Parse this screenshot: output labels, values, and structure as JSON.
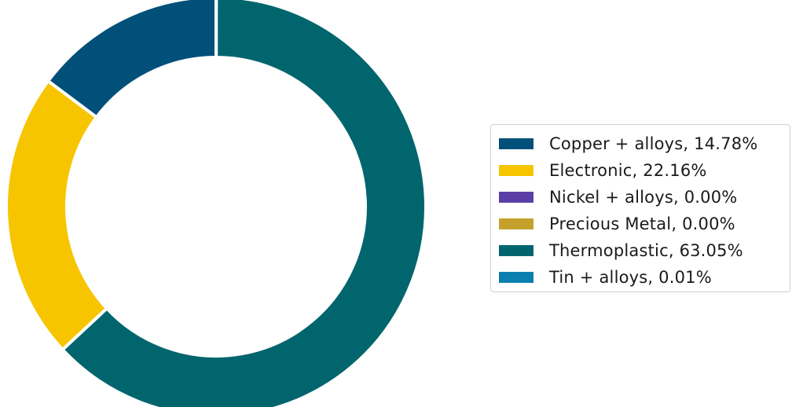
{
  "chart_data": {
    "type": "pie",
    "style": "donut",
    "title": "",
    "categories": [
      "Copper + alloys",
      "Electronic",
      "Nickel + alloys",
      "Precious Metal",
      "Thermoplastic",
      "Tin + alloys"
    ],
    "values": [
      14.78,
      22.16,
      0.0,
      0.0,
      63.05,
      0.01
    ],
    "colors": [
      "#00507a",
      "#f6c500",
      "#5b3fa6",
      "#c4a12a",
      "#00656d",
      "#0a7fb0"
    ],
    "legend": {
      "placement": "right",
      "items": [
        {
          "label": "Copper + alloys, 14.78%",
          "color": "#00507a"
        },
        {
          "label": "Electronic, 22.16%",
          "color": "#f6c500"
        },
        {
          "label": "Nickel + alloys, 0.00%",
          "color": "#5b3fa6"
        },
        {
          "label": "Precious Metal, 0.00%",
          "color": "#c4a12a"
        },
        {
          "label": "Thermoplastic, 63.05%",
          "color": "#00656d"
        },
        {
          "label": "Tin + alloys, 0.01%",
          "color": "#0a7fb0"
        }
      ]
    },
    "start_angle_deg": 90,
    "direction": "counterclockwise"
  }
}
